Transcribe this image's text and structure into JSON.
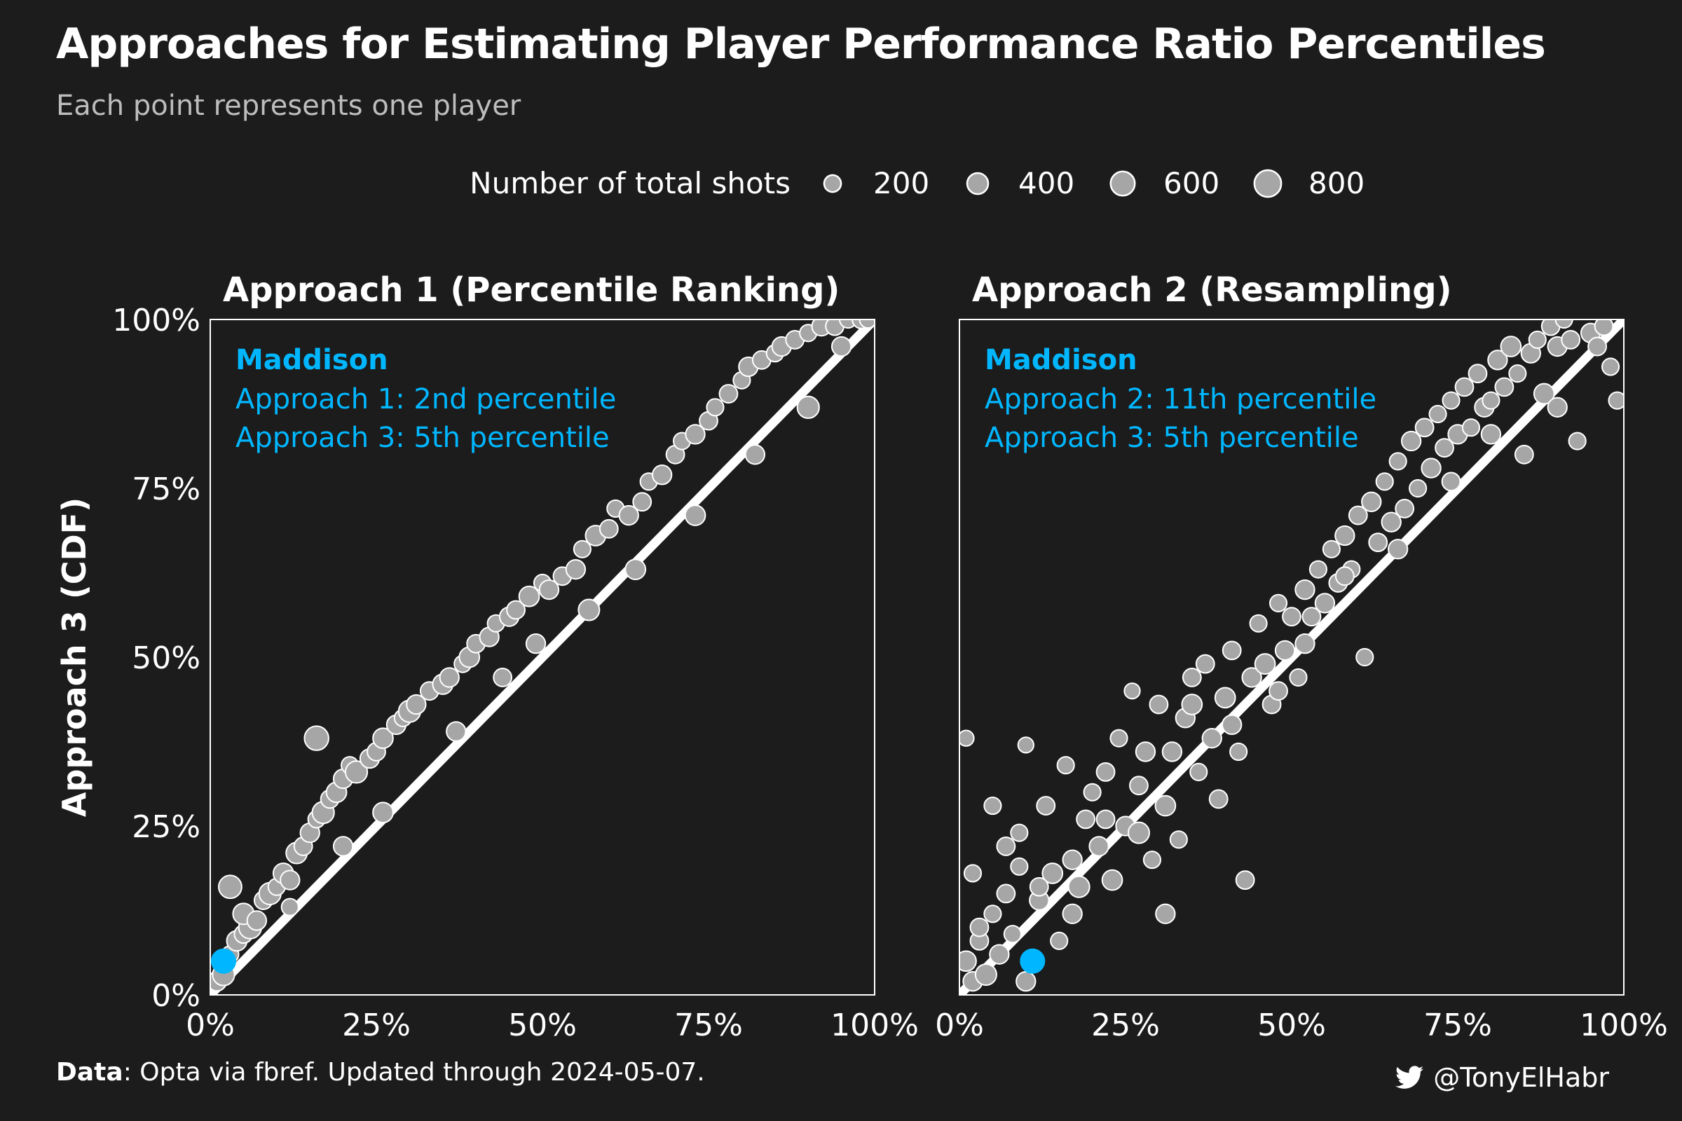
{
  "title": "Approaches for Estimating Player Performance Ratio Percentiles",
  "subtitle": "Each point represents one player",
  "caption": {
    "label": "Data",
    "text": ": Opta via fbref. Updated through 2024-05-07."
  },
  "handle": {
    "icon": "twitter-icon",
    "text": "@TonyElHabr"
  },
  "colors": {
    "background": "#1c1c1c",
    "point_fill": "#a6a6a6",
    "point_stroke": "#ffffff",
    "highlight": "#00b7ff",
    "reference_line": "#ffffff"
  },
  "legend": {
    "title": "Number of total shots",
    "placement": "top",
    "items": [
      {
        "label": "200",
        "shots": 200
      },
      {
        "label": "400",
        "shots": 400
      },
      {
        "label": "600",
        "shots": 600
      },
      {
        "label": "800",
        "shots": 800
      }
    ]
  },
  "chart_data": [
    {
      "type": "scatter",
      "title": "Approach 1 (Percentile Ranking)",
      "ylabel": "Approach 3 (CDF)",
      "xlabel": "",
      "xlim": [
        0,
        100
      ],
      "ylim": [
        0,
        100
      ],
      "x_ticks": [
        "0%",
        "25%",
        "50%",
        "75%",
        "100%"
      ],
      "y_ticks": [
        "0%",
        "25%",
        "50%",
        "75%",
        "100%"
      ],
      "reference_line": "y = x",
      "highlight": {
        "player": "Maddison",
        "x": 2,
        "y": 5,
        "lines": [
          "Approach 1: 2nd percentile",
          "Approach 3: 5th percentile"
        ]
      },
      "points": [
        [
          1,
          2,
          300
        ],
        [
          2,
          3,
          450
        ],
        [
          3,
          6,
          200
        ],
        [
          4,
          8,
          350
        ],
        [
          5,
          9,
          250
        ],
        [
          6,
          10,
          500
        ],
        [
          3,
          16,
          520
        ],
        [
          5,
          12,
          400
        ],
        [
          7,
          11,
          300
        ],
        [
          8,
          14,
          250
        ],
        [
          9,
          15,
          450
        ],
        [
          10,
          16,
          200
        ],
        [
          11,
          18,
          350
        ],
        [
          12,
          17,
          300
        ],
        [
          13,
          21,
          400
        ],
        [
          14,
          22,
          250
        ],
        [
          15,
          24,
          300
        ],
        [
          16,
          26,
          200
        ],
        [
          17,
          27,
          450
        ],
        [
          16,
          38,
          600
        ],
        [
          18,
          29,
          250
        ],
        [
          19,
          30,
          350
        ],
        [
          20,
          32,
          300
        ],
        [
          21,
          34,
          200
        ],
        [
          22,
          33,
          450
        ],
        [
          24,
          35,
          300
        ],
        [
          25,
          36,
          250
        ],
        [
          26,
          38,
          350
        ],
        [
          28,
          40,
          300
        ],
        [
          29,
          41,
          200
        ],
        [
          30,
          42,
          450
        ],
        [
          31,
          43,
          300
        ],
        [
          33,
          45,
          250
        ],
        [
          35,
          46,
          350
        ],
        [
          36,
          47,
          300
        ],
        [
          38,
          49,
          200
        ],
        [
          39,
          50,
          350
        ],
        [
          40,
          52,
          250
        ],
        [
          42,
          53,
          300
        ],
        [
          43,
          55,
          200
        ],
        [
          45,
          56,
          300
        ],
        [
          46,
          57,
          250
        ],
        [
          48,
          59,
          350
        ],
        [
          50,
          61,
          200
        ],
        [
          51,
          60,
          300
        ],
        [
          53,
          62,
          250
        ],
        [
          55,
          63,
          300
        ],
        [
          56,
          66,
          200
        ],
        [
          58,
          68,
          350
        ],
        [
          60,
          69,
          250
        ],
        [
          61,
          72,
          200
        ],
        [
          63,
          71,
          300
        ],
        [
          65,
          73,
          250
        ],
        [
          66,
          76,
          200
        ],
        [
          68,
          77,
          300
        ],
        [
          70,
          80,
          250
        ],
        [
          71,
          82,
          200
        ],
        [
          73,
          83,
          300
        ],
        [
          75,
          85,
          250
        ],
        [
          76,
          87,
          200
        ],
        [
          78,
          89,
          250
        ],
        [
          80,
          91,
          200
        ],
        [
          81,
          93,
          300
        ],
        [
          83,
          94,
          250
        ],
        [
          85,
          95,
          200
        ],
        [
          86,
          96,
          300
        ],
        [
          88,
          97,
          250
        ],
        [
          90,
          98,
          200
        ],
        [
          92,
          99,
          300
        ],
        [
          94,
          99,
          250
        ],
        [
          96,
          100,
          200
        ],
        [
          98,
          100,
          250
        ],
        [
          99,
          100,
          200
        ],
        [
          57,
          57,
          400
        ],
        [
          64,
          63,
          350
        ],
        [
          73,
          71,
          350
        ],
        [
          82,
          80,
          300
        ],
        [
          90,
          87,
          450
        ],
        [
          95,
          96,
          300
        ],
        [
          12,
          13,
          200
        ],
        [
          20,
          22,
          300
        ],
        [
          26,
          27,
          350
        ],
        [
          37,
          39,
          300
        ],
        [
          44,
          47,
          250
        ],
        [
          49,
          52,
          300
        ]
      ]
    },
    {
      "type": "scatter",
      "title": "Approach 2 (Resampling)",
      "ylabel": "",
      "xlabel": "",
      "xlim": [
        0,
        100
      ],
      "ylim": [
        0,
        100
      ],
      "x_ticks": [
        "0%",
        "25%",
        "50%",
        "75%",
        "100%"
      ],
      "y_ticks": [],
      "reference_line": "y = x",
      "highlight": {
        "player": "Maddison",
        "x": 11,
        "y": 5,
        "lines": [
          "Approach 2: 11th percentile",
          "Approach 3: 5th percentile"
        ]
      },
      "points": [
        [
          1,
          5,
          350
        ],
        [
          2,
          2,
          300
        ],
        [
          3,
          8,
          250
        ],
        [
          4,
          3,
          400
        ],
        [
          5,
          12,
          200
        ],
        [
          6,
          6,
          300
        ],
        [
          7,
          15,
          250
        ],
        [
          8,
          9,
          200
        ],
        [
          9,
          19,
          200
        ],
        [
          10,
          2,
          300
        ],
        [
          1,
          38,
          150
        ],
        [
          2,
          18,
          200
        ],
        [
          3,
          10,
          250
        ],
        [
          5,
          28,
          200
        ],
        [
          7,
          22,
          250
        ],
        [
          9,
          24,
          200
        ],
        [
          10,
          37,
          150
        ],
        [
          12,
          14,
          300
        ],
        [
          13,
          28,
          250
        ],
        [
          14,
          18,
          350
        ],
        [
          15,
          8,
          200
        ],
        [
          16,
          34,
          200
        ],
        [
          17,
          20,
          300
        ],
        [
          18,
          16,
          400
        ],
        [
          19,
          26,
          250
        ],
        [
          20,
          30,
          200
        ],
        [
          21,
          22,
          300
        ],
        [
          22,
          33,
          250
        ],
        [
          23,
          17,
          350
        ],
        [
          24,
          38,
          200
        ],
        [
          25,
          25,
          300
        ],
        [
          26,
          45,
          150
        ],
        [
          27,
          31,
          250
        ],
        [
          28,
          36,
          300
        ],
        [
          29,
          20,
          200
        ],
        [
          30,
          43,
          250
        ],
        [
          31,
          28,
          350
        ],
        [
          32,
          36,
          300
        ],
        [
          33,
          23,
          200
        ],
        [
          34,
          41,
          300
        ],
        [
          35,
          47,
          250
        ],
        [
          36,
          33,
          200
        ],
        [
          37,
          49,
          250
        ],
        [
          38,
          38,
          300
        ],
        [
          39,
          29,
          250
        ],
        [
          40,
          44,
          350
        ],
        [
          41,
          51,
          250
        ],
        [
          42,
          36,
          200
        ],
        [
          43,
          17,
          250
        ],
        [
          44,
          47,
          300
        ],
        [
          45,
          55,
          200
        ],
        [
          46,
          49,
          350
        ],
        [
          47,
          43,
          250
        ],
        [
          48,
          58,
          200
        ],
        [
          49,
          51,
          300
        ],
        [
          50,
          56,
          250
        ],
        [
          51,
          47,
          200
        ],
        [
          52,
          60,
          300
        ],
        [
          53,
          56,
          250
        ],
        [
          54,
          63,
          200
        ],
        [
          55,
          58,
          300
        ],
        [
          56,
          66,
          200
        ],
        [
          57,
          61,
          250
        ],
        [
          58,
          68,
          300
        ],
        [
          59,
          63,
          200
        ],
        [
          60,
          71,
          250
        ],
        [
          61,
          50,
          200
        ],
        [
          62,
          73,
          300
        ],
        [
          63,
          67,
          250
        ],
        [
          64,
          76,
          200
        ],
        [
          65,
          70,
          300
        ],
        [
          66,
          79,
          200
        ],
        [
          67,
          72,
          250
        ],
        [
          68,
          82,
          300
        ],
        [
          69,
          75,
          200
        ],
        [
          70,
          84,
          250
        ],
        [
          71,
          78,
          300
        ],
        [
          72,
          86,
          200
        ],
        [
          73,
          81,
          250
        ],
        [
          74,
          88,
          200
        ],
        [
          75,
          83,
          300
        ],
        [
          76,
          90,
          250
        ],
        [
          77,
          84,
          200
        ],
        [
          78,
          92,
          250
        ],
        [
          79,
          87,
          300
        ],
        [
          80,
          88,
          200
        ],
        [
          81,
          94,
          300
        ],
        [
          82,
          90,
          250
        ],
        [
          83,
          96,
          350
        ],
        [
          84,
          92,
          200
        ],
        [
          85,
          80,
          250
        ],
        [
          86,
          95,
          300
        ],
        [
          87,
          97,
          200
        ],
        [
          88,
          89,
          350
        ],
        [
          89,
          99,
          250
        ],
        [
          90,
          96,
          300
        ],
        [
          91,
          100,
          200
        ],
        [
          92,
          97,
          250
        ],
        [
          93,
          82,
          200
        ],
        [
          95,
          98,
          300
        ],
        [
          97,
          99,
          250
        ],
        [
          98,
          93,
          200
        ],
        [
          99,
          88,
          200
        ],
        [
          12,
          16,
          250
        ],
        [
          17,
          12,
          300
        ],
        [
          22,
          26,
          250
        ],
        [
          27,
          24,
          400
        ],
        [
          31,
          12,
          300
        ],
        [
          35,
          43,
          350
        ],
        [
          41,
          40,
          300
        ],
        [
          48,
          45,
          250
        ],
        [
          52,
          52,
          300
        ],
        [
          58,
          62,
          250
        ],
        [
          66,
          66,
          300
        ],
        [
          74,
          76,
          250
        ],
        [
          80,
          83,
          300
        ],
        [
          90,
          87,
          300
        ],
        [
          96,
          96,
          250
        ]
      ]
    }
  ]
}
